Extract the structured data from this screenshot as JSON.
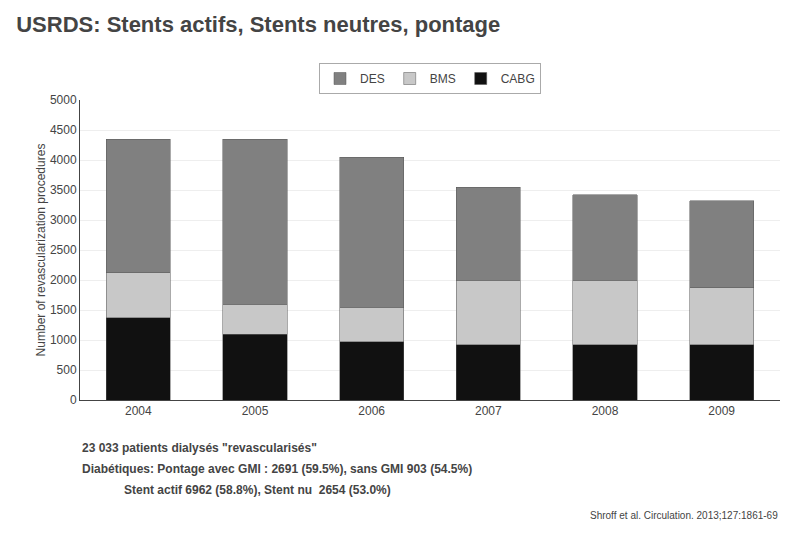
{
  "chart_data": {
    "type": "bar",
    "stacked": true,
    "title": "USRDS: Stents actifs, Stents neutres, pontage",
    "ylabel": "Number of revascularization procedures",
    "categories": [
      "2004",
      "2005",
      "2006",
      "2007",
      "2008",
      "2009"
    ],
    "series": [
      {
        "name": "CABG",
        "color": "#111111",
        "values": [
          1375,
          1100,
          975,
          925,
          925,
          925
        ]
      },
      {
        "name": "BMS",
        "color": "#c8c8c8",
        "values": [
          750,
          500,
          575,
          1075,
          1075,
          950
        ]
      },
      {
        "name": "DES",
        "color": "#808080",
        "values": [
          2225,
          2750,
          2500,
          1550,
          1425,
          1450
        ]
      }
    ],
    "ylim": [
      0,
      5000
    ],
    "yticks": [
      0,
      500,
      1000,
      1500,
      2000,
      2500,
      3000,
      3500,
      4000,
      4500,
      5000
    ],
    "grid": true,
    "legend": "upper center",
    "annotations": [
      "23 033 patients dialysés \"revascularisés\"",
      "Diabétiques: Pontage avec GMI : 2691 (59.5%), sans GMI 903 (54.5%)",
      "Stent actif 6962 (58.8%), Stent nu  2654 (53.0%)",
      "Shroff et al. Circulation. 2013;127:1861-69"
    ]
  }
}
